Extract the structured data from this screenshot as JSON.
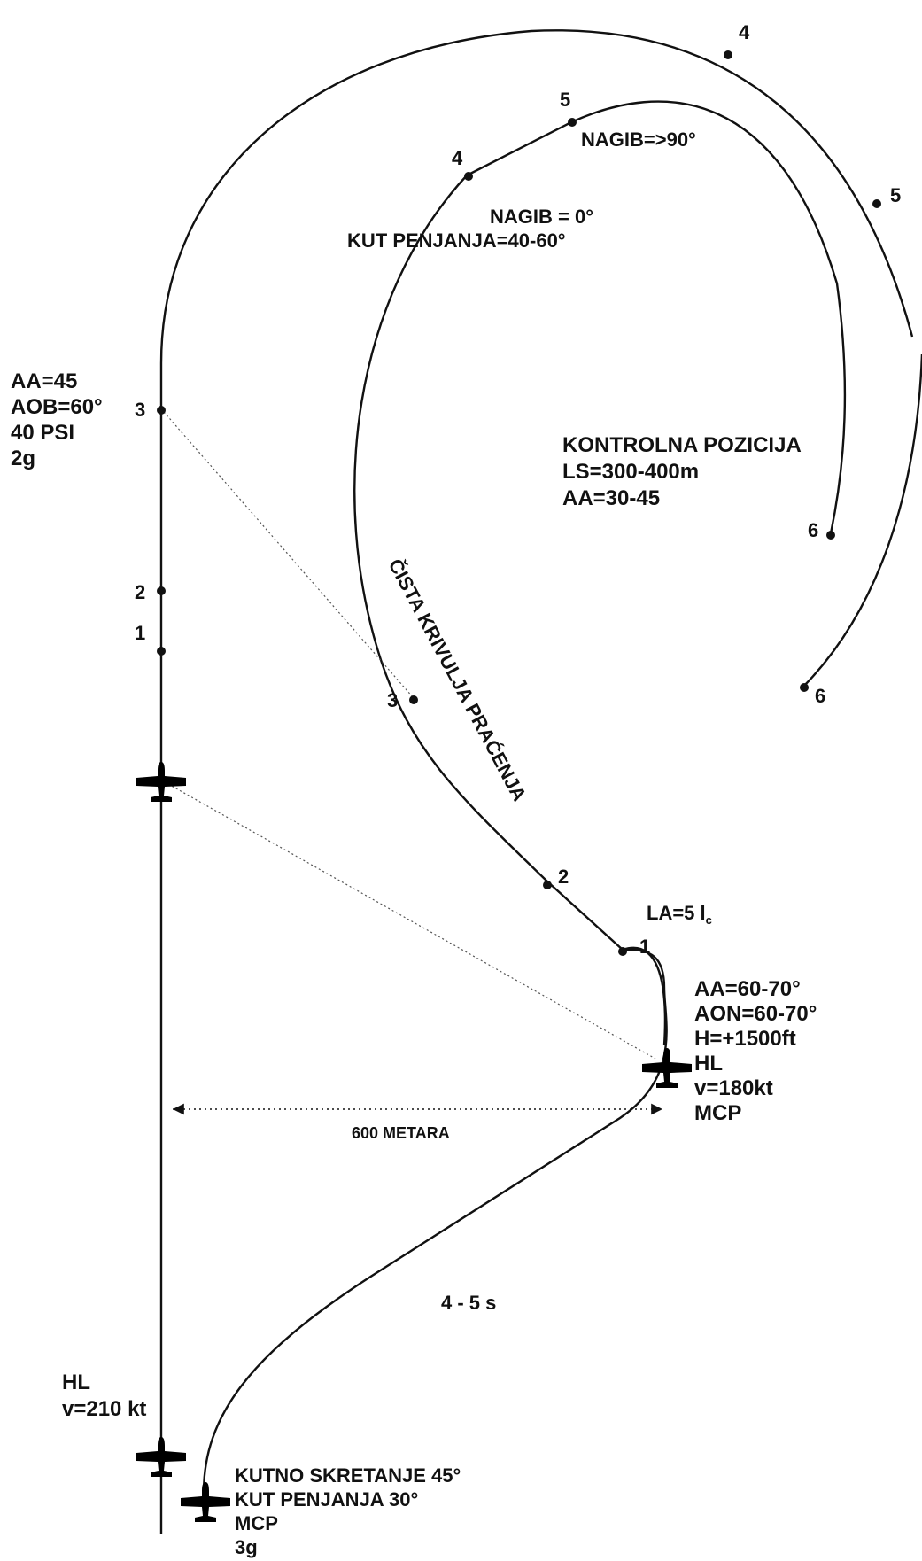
{
  "leader": {
    "start_lines": [
      "HL",
      "v=210 kt"
    ],
    "check_lines": [
      "AA=45",
      "AOB=60°",
      "40 PSI",
      "2g"
    ],
    "points": [
      "1",
      "2",
      "3",
      "4",
      "5",
      "6"
    ]
  },
  "attacker": {
    "start_lines": [
      "KUTNO SKRETANJE 45°",
      "KUT PENJANJA 30°",
      "MCP",
      "3g"
    ],
    "segment_time": "4 - 5 s",
    "hold_lines": [
      "AA=60-70°",
      "AON=60-70°",
      "H=+1500ft",
      "HL",
      "v=180kt",
      "MCP"
    ],
    "la_text": "LA=5 l",
    "la_subscript": "c",
    "points": [
      "1",
      "2",
      "3",
      "4",
      "5",
      "6"
    ],
    "pursuit_label": "ČISTA KRIVULJA PRAĆENJA",
    "climb_lines": [
      "NAGIB = 0°",
      "KUT PENJANJA=40-60°"
    ],
    "bank_label": "NAGIB=>90°"
  },
  "separation_label": "600 METARA",
  "control_position": [
    "KONTROLNA POZICIJA",
    "LS=300-400m",
    "AA=30-45"
  ],
  "colors": {
    "ink": "#111111",
    "sightline": "#555555",
    "background": "#ffffff"
  },
  "icons": [
    "aircraft-icon"
  ]
}
